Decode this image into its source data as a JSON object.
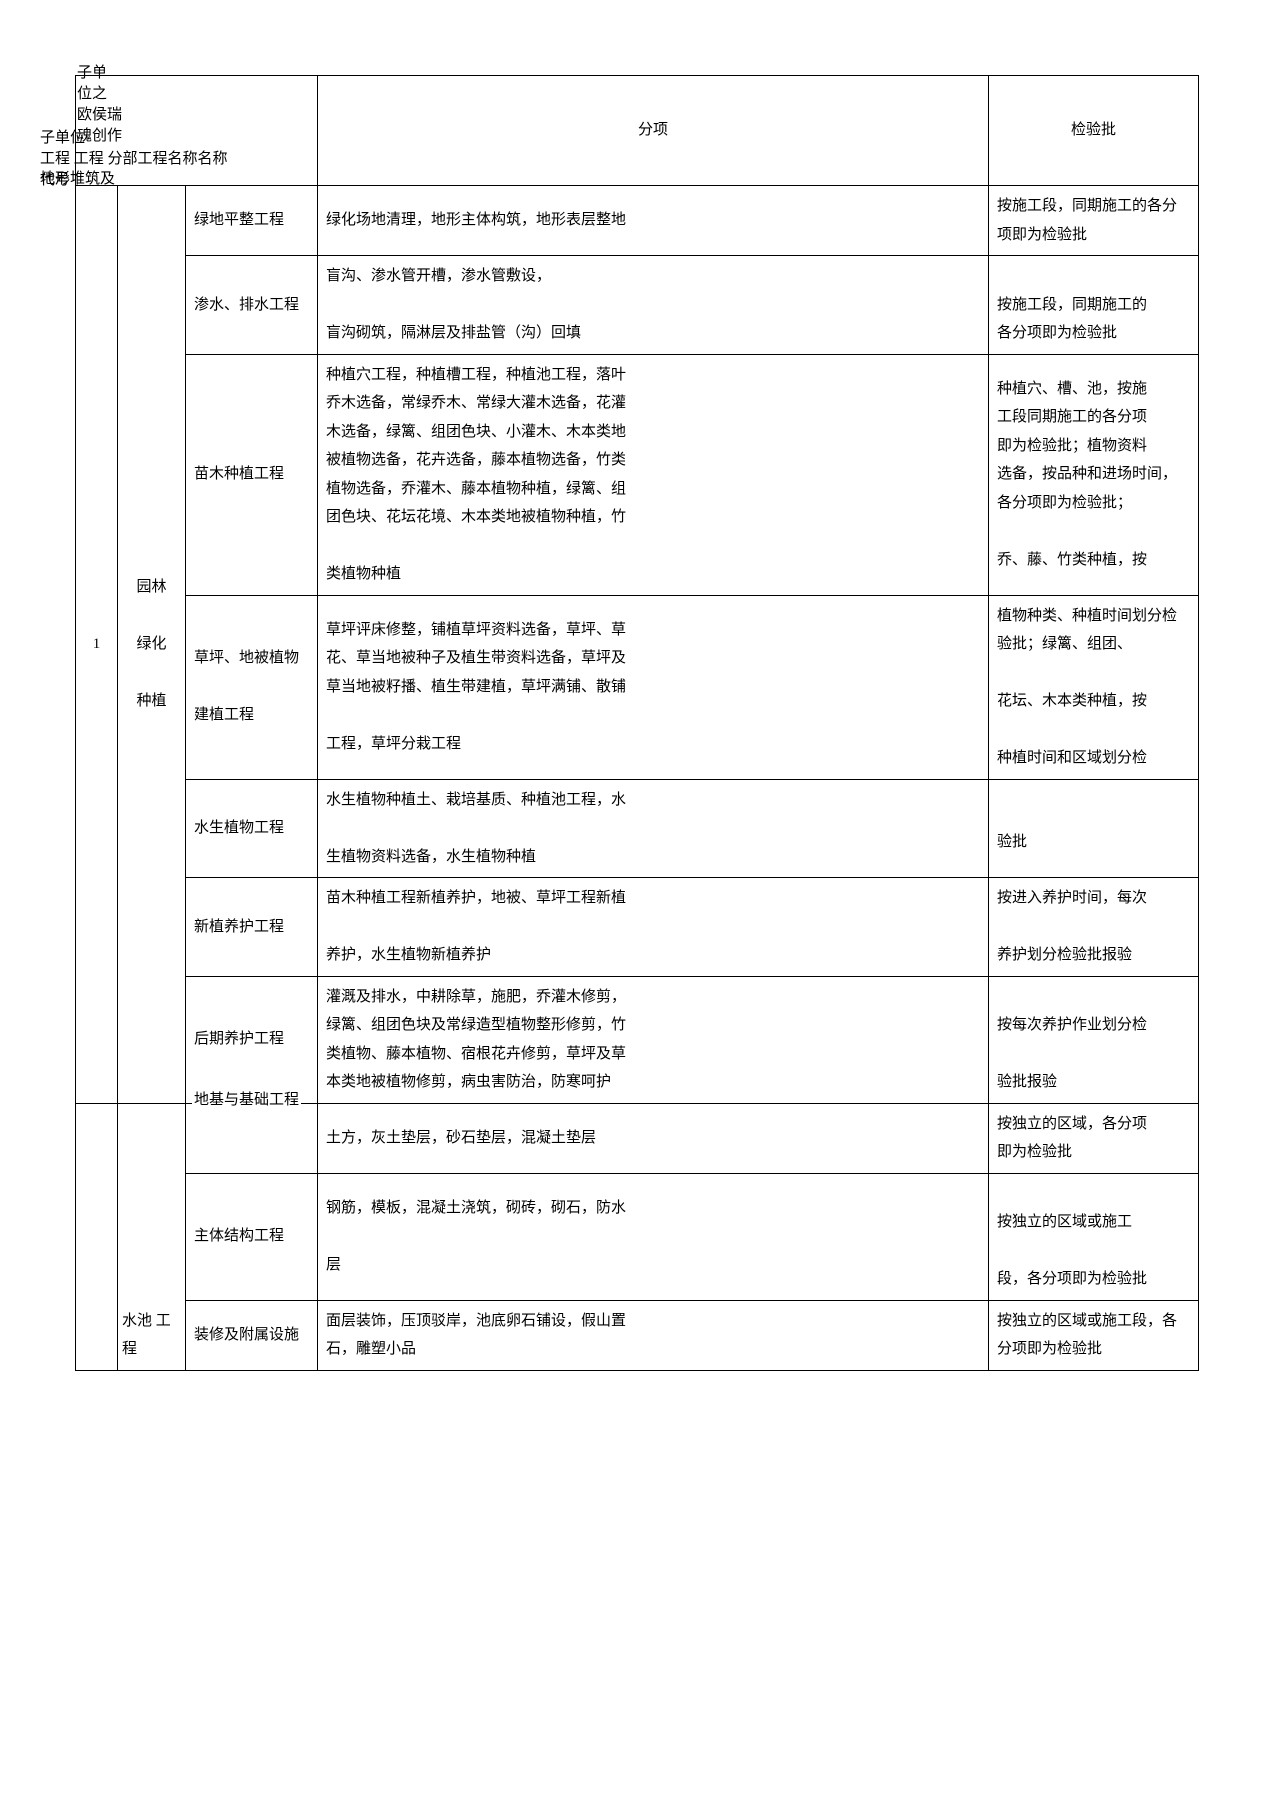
{
  "header": {
    "line1": "子单<br>位之<br>欧侯瑞<br>魂创作",
    "line2": "子单位<br>工程&nbsp;工程 分部工程名称名称",
    "line2b": "代号",
    "line3": "地形堆筑及",
    "col4": "分项",
    "col5": "检验批"
  },
  "units": [
    {
      "code": "1",
      "name": "园林<br><br>绿化<br><br>种植",
      "rows": [
        {
          "fb": "绿地平整工程",
          "fb_over": "",
          "fx": "绿化场地清理，地形主体构筑，地形表层整地",
          "jyp": "按施工段，同期施工的各分项即为检验批"
        },
        {
          "fb": "渗水、排水工程",
          "fx": "盲沟、渗水管开槽，渗水管敷设，<br><br>盲沟砌筑，隔淋层及排盐管（沟）回填",
          "jyp": "<br>按施工段，同期施工的<br>各分项即为检验批"
        },
        {
          "fb": "苗木种植工程",
          "fx": "种植穴工程，种植槽工程，种植池工程，落叶<br>乔木选备，常绿乔木、常绿大灌木选备，花灌<br>木选备，绿篱、组团色块、小灌木、木本类地<br>被植物选备，花卉选备，藤本植物选备，竹类<br>植物选备，乔灌木、藤本植物种植，绿篱、组<br>团色块、花坛花境、木本类地被植物种植，竹<br><br>类植物种植",
          "jyp": "种植穴、槽、池，按施<br>工段同期施工的各分项<br>即为检验批；植物资料<br>选备，按品种和进场时间，各分项即为检验批；<br><br>乔、藤、竹类种植，按"
        },
        {
          "fb": "草坪、地被植物<br><br>建植工程",
          "fx": "草坪评床修整，铺植草坪资料选备，草坪、草<br>花、草当地被种子及植生带资料选备，草坪及<br>草当地被籽播、植生带建植，草坪满铺、散铺<br><br>工程，草坪分栽工程",
          "jyp": "植物种类、种植时间划分检验批；绿篱、组团、<br><br>花坛、木本类种植，按<br><br>种植时间和区域划分检"
        },
        {
          "fb": "水生植物工程",
          "fx": "水生植物种植土、栽培基质、种植池工程，水<br><br>生植物资料选备，水生植物种植",
          "jyp": "<br>验批"
        },
        {
          "fb": "新植养护工程",
          "fx": "苗木种植工程新植养护，地被、草坪工程新植<br><br>养护，水生植物新植养护",
          "jyp": "按进入养护时间，每次<br><br>养护划分检验批报验"
        },
        {
          "fb": "后期养护工程",
          "fx": "灌溉及排水，中耕除草，施肥，乔灌木修剪，<br>绿篱、组团色块及常绿造型植物整形修剪，竹<br>类植物、藤本植物、宿根花卉修剪，草坪及草<br>本类地被植物修剪，病虫害防治，防寒呵护",
          "jyp": "<br>按每次养护作业划分检<br><br>验批报验"
        }
      ]
    },
    {
      "code": "",
      "name": "水池&nbsp;工程",
      "rows": [
        {
          "fb_over": "地基与基础工程",
          "fb": "",
          "fx": "土方，灰土垫层，砂石垫层，混凝土垫层",
          "jyp": "按独立的区域，各分项<br>即为检验批"
        },
        {
          "fb": "主体结构工程",
          "fx": "钢筋，模板，混凝土浇筑，砌砖，砌石，防水<br><br>层",
          "jyp": "<br>按独立的区域或施工<br><br>段，各分项即为检验批"
        },
        {
          "fb": "装修及附属设施",
          "fx": "面层装饰，压顶驳岸，池底卵石铺设，假山置<br>石，雕塑小品",
          "jyp": "按独立的区域或施工段，各分项即为检验批"
        }
      ]
    }
  ]
}
